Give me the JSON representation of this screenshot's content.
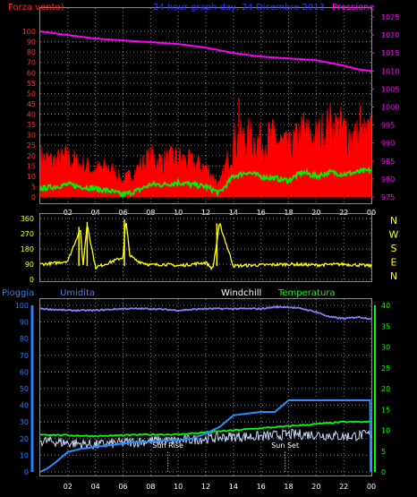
{
  "header": {
    "left_label": "Forza vento)",
    "center_label": "24 hour graph day, 24 Dicembre 2013",
    "right_label": "Pressione"
  },
  "compass": {
    "labels": [
      "N",
      "W",
      "S",
      "E",
      "N"
    ]
  },
  "bottom_header": {
    "rain_label": "Pioggia",
    "humidity_label": "Umidita",
    "windchill_label": "Windchill",
    "temperature_label": "Temperatura"
  },
  "annotations": {
    "sun_rise": "Sun Rise",
    "sun_set": "Sun Set"
  },
  "colors": {
    "wind_gust": "#ff0000",
    "wind_avg": "#00ee00",
    "pressure": "#ff00ff",
    "direction": "#ffff00",
    "humidity": "#8080ff",
    "rain": "#1e90ff",
    "temperature": "#00ff00",
    "windchill": "#c8d8ff",
    "grid": "#888888",
    "left_axis_top": "#ff3030",
    "left_axis_bottom": "#2080ff"
  },
  "chart_data": [
    {
      "type": "line",
      "name": "wind-pressure",
      "x_ticks": [
        "02",
        "04",
        "06",
        "08",
        "10",
        "12",
        "14",
        "16",
        "18",
        "20",
        "22",
        "00"
      ],
      "y_left_ticks": [
        0,
        5,
        10,
        15,
        20,
        25,
        30,
        35,
        40,
        45,
        50,
        55,
        60,
        70,
        80,
        90,
        100
      ],
      "y_left_range": [
        0,
        100
      ],
      "y_right_ticks": [
        975,
        980,
        985,
        990,
        995,
        1000,
        1005,
        1010,
        1015,
        1020,
        1025
      ],
      "y_right_range": [
        975,
        1025
      ],
      "series": [
        {
          "name": "Pressione",
          "axis": "right",
          "x": [
            0,
            2,
            4,
            6,
            8,
            10,
            12,
            14,
            16,
            18,
            20,
            22,
            23,
            24
          ],
          "values": [
            1021,
            1020,
            1019,
            1018.5,
            1018,
            1017.5,
            1016.5,
            1015,
            1014,
            1013.5,
            1013,
            1011.5,
            1010.5,
            1010
          ]
        }
      ],
      "gust_envelope": {
        "name": "Forza vento",
        "x": [
          0,
          1,
          2,
          3,
          4,
          5,
          6,
          7,
          8,
          9,
          10,
          11,
          12,
          13,
          14,
          15,
          16,
          17,
          18,
          19,
          20,
          21,
          22,
          23,
          24
        ],
        "values": [
          20,
          18,
          20,
          16,
          14,
          15,
          8,
          14,
          20,
          18,
          20,
          17,
          15,
          6,
          28,
          30,
          28,
          30,
          24,
          32,
          30,
          36,
          34,
          30,
          32
        ]
      },
      "avg_envelope": {
        "name": "Forza vento",
        "x": [
          0,
          1,
          2,
          3,
          4,
          5,
          6,
          7,
          8,
          9,
          10,
          11,
          12,
          13,
          14,
          15,
          16,
          17,
          18,
          19,
          20,
          21,
          22,
          23,
          24
        ],
        "values": [
          4,
          5,
          6,
          5,
          4,
          3,
          1,
          3,
          6,
          6,
          7,
          6,
          5,
          2,
          10,
          12,
          10,
          9,
          8,
          12,
          10,
          12,
          11,
          12,
          13
        ]
      }
    },
    {
      "type": "line",
      "name": "wind-direction",
      "y_ticks": [
        0,
        90,
        180,
        270,
        360
      ],
      "y_range": [
        0,
        360
      ],
      "series": [
        {
          "name": "direction",
          "x": [
            0,
            1,
            2,
            2.9,
            3.1,
            3.4,
            4,
            5,
            6,
            6.2,
            6.5,
            7,
            8,
            9,
            10,
            11,
            12,
            12.5,
            13,
            14,
            16,
            18,
            20,
            22,
            24
          ],
          "values": [
            90,
            95,
            110,
            300,
            80,
            330,
            70,
            100,
            130,
            350,
            140,
            110,
            85,
            90,
            80,
            90,
            100,
            60,
            330,
            80,
            85,
            90,
            85,
            90,
            80
          ]
        }
      ]
    },
    {
      "type": "line",
      "name": "rain-humidity-temperature",
      "x_ticks": [
        "02",
        "04",
        "06",
        "08",
        "10",
        "12",
        "14",
        "16",
        "18",
        "20",
        "22",
        "00"
      ],
      "y_left_ticks": [
        0,
        10,
        20,
        30,
        40,
        50,
        60,
        70,
        80,
        90,
        100
      ],
      "y_left_range": [
        0,
        100
      ],
      "y_right_ticks": [
        0,
        5,
        10,
        15,
        20,
        25,
        30,
        35,
        40
      ],
      "y_right_range": [
        0,
        40
      ],
      "series": [
        {
          "name": "Umidita",
          "axis": "left",
          "x": [
            0,
            2,
            4,
            6,
            8,
            10,
            12,
            14,
            16,
            17,
            18,
            19,
            20,
            21,
            22,
            23,
            24
          ],
          "values": [
            98,
            97,
            97,
            98,
            98,
            97,
            98,
            98,
            98,
            99,
            99,
            98,
            96,
            93,
            92,
            93,
            92
          ]
        },
        {
          "name": "Pioggia",
          "axis": "left",
          "x": [
            0,
            0.5,
            1,
            2,
            3,
            4,
            5,
            6,
            7,
            8,
            9,
            10,
            11,
            12,
            13,
            14,
            15,
            16,
            17,
            18,
            19,
            20,
            21,
            22,
            23,
            23.9
          ],
          "values": [
            0,
            2,
            5,
            12,
            14,
            15,
            16,
            17,
            18,
            18,
            19,
            19,
            20,
            23,
            27,
            34,
            35,
            36,
            36,
            43,
            43,
            43,
            43,
            43,
            43,
            43
          ]
        },
        {
          "name": "Temperatura",
          "axis": "right",
          "x": [
            0,
            2,
            4,
            6,
            8,
            10,
            12,
            14,
            16,
            18,
            20,
            22,
            24
          ],
          "values": [
            9,
            8.8,
            8.6,
            8.8,
            9,
            9,
            9.5,
            10,
            10.5,
            11,
            11.5,
            12,
            12
          ]
        },
        {
          "name": "Windchill",
          "axis": "right",
          "x": [
            0,
            2,
            4,
            6,
            8,
            10,
            12,
            14,
            16,
            18,
            20,
            22,
            24
          ],
          "values": [
            7.5,
            7,
            6.5,
            7,
            7.5,
            7.5,
            8,
            8.5,
            8.5,
            9,
            9,
            8.5,
            9
          ]
        }
      ]
    }
  ]
}
